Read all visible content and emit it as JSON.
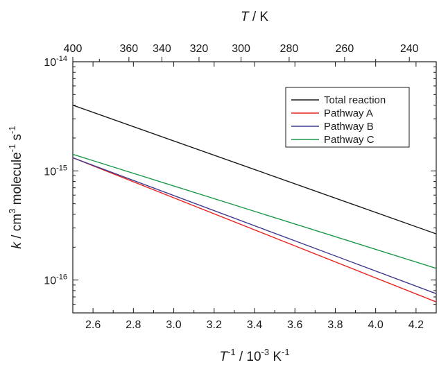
{
  "chart_data": {
    "type": "line",
    "x_axis": {
      "title_var": "T",
      "title_exp": "-1",
      "title_rest": " / 10",
      "title_exp2": "-3",
      "title_unit": " K",
      "title_exp3": "-1",
      "range": [
        2.5,
        4.3
      ],
      "ticks": [
        2.6,
        2.8,
        3.0,
        3.2,
        3.4,
        3.6,
        3.8,
        4.0,
        4.2
      ],
      "tick_labels": [
        "2.6",
        "2.8",
        "3.0",
        "3.2",
        "3.4",
        "3.6",
        "3.8",
        "4.0",
        "4.2"
      ]
    },
    "top_axis": {
      "title_var": "T",
      "title_rest": " / K",
      "ticks": [
        400,
        360,
        340,
        320,
        300,
        280,
        260,
        240
      ],
      "tick_labels": [
        "400",
        "360",
        "340",
        "320",
        "300",
        "280",
        "260",
        "240"
      ]
    },
    "y_axis": {
      "scale": "log",
      "range": [
        5e-17,
        1e-14
      ],
      "title_var": "k",
      "title_a": " / cm",
      "title_a_exp": "3",
      "title_b": " molecule",
      "title_b_exp": "-1",
      "title_c": " s",
      "title_c_exp": "-1",
      "ticks": [
        {
          "value": 1e-14,
          "base": "10",
          "exp": "-14"
        },
        {
          "value": 1e-15,
          "base": "10",
          "exp": "-15"
        },
        {
          "value": 1e-16,
          "base": "10",
          "exp": "-16"
        }
      ]
    },
    "series": [
      {
        "name": "Total reaction",
        "color": "#1a1a1a",
        "x": [
          2.5,
          4.3
        ],
        "y": [
          4e-15,
          2.65e-16
        ]
      },
      {
        "name": "Pathway A",
        "color": "#e8231f",
        "x": [
          2.5,
          4.3
        ],
        "y": [
          1.32e-15,
          6.3e-17
        ]
      },
      {
        "name": "Pathway B",
        "color": "#3d3a8f",
        "x": [
          2.5,
          4.3
        ],
        "y": [
          1.32e-15,
          7.5e-17
        ]
      },
      {
        "name": "Pathway C",
        "color": "#1a9a4a",
        "x": [
          2.5,
          4.3
        ],
        "y": [
          1.42e-15,
          1.28e-16
        ]
      }
    ],
    "legend_position": "top-right",
    "grid": false
  }
}
